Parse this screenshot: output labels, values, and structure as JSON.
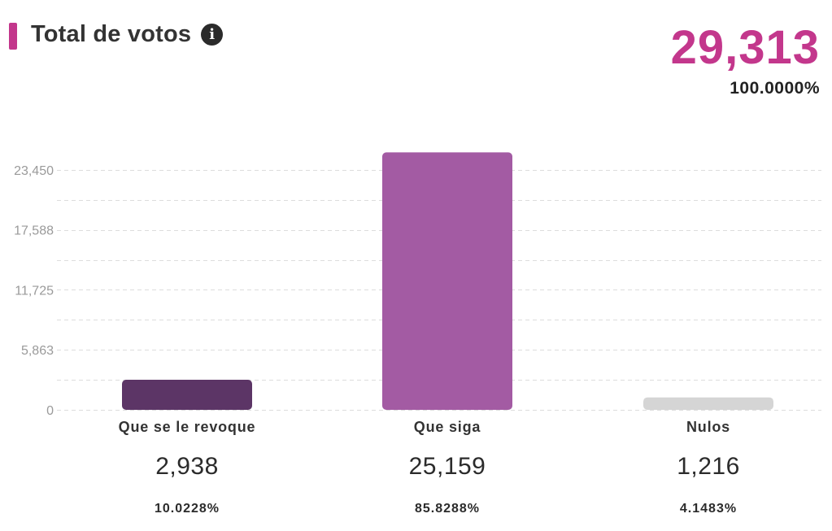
{
  "header": {
    "title": "Total de votos",
    "info_icon": "info-icon",
    "total_value": "29,313",
    "total_percent": "100.0000%"
  },
  "colors": {
    "accent": "#c3378c",
    "bar_revoque": "#5c3566",
    "bar_siga": "#a35ba3",
    "bar_nulos": "#d5d5d5"
  },
  "chart_data": {
    "type": "bar",
    "title": "",
    "xlabel": "",
    "ylabel": "",
    "ylim": [
      0,
      26380
    ],
    "yticks": [
      0,
      5863,
      11725,
      17588,
      23450
    ],
    "ytick_labels": [
      "0",
      "5,863",
      "11,725",
      "17,588",
      "23,450"
    ],
    "grid": true,
    "categories": [
      "Que se le revoque",
      "Que siga",
      "Nulos"
    ],
    "values": [
      2938,
      25159,
      1216
    ],
    "value_labels": [
      "2,938",
      "25,159",
      "1,216"
    ],
    "percent_labels": [
      "10.0228%",
      "85.8288%",
      "4.1483%"
    ],
    "bar_colors": [
      "#5c3566",
      "#a35ba3",
      "#d5d5d5"
    ]
  }
}
